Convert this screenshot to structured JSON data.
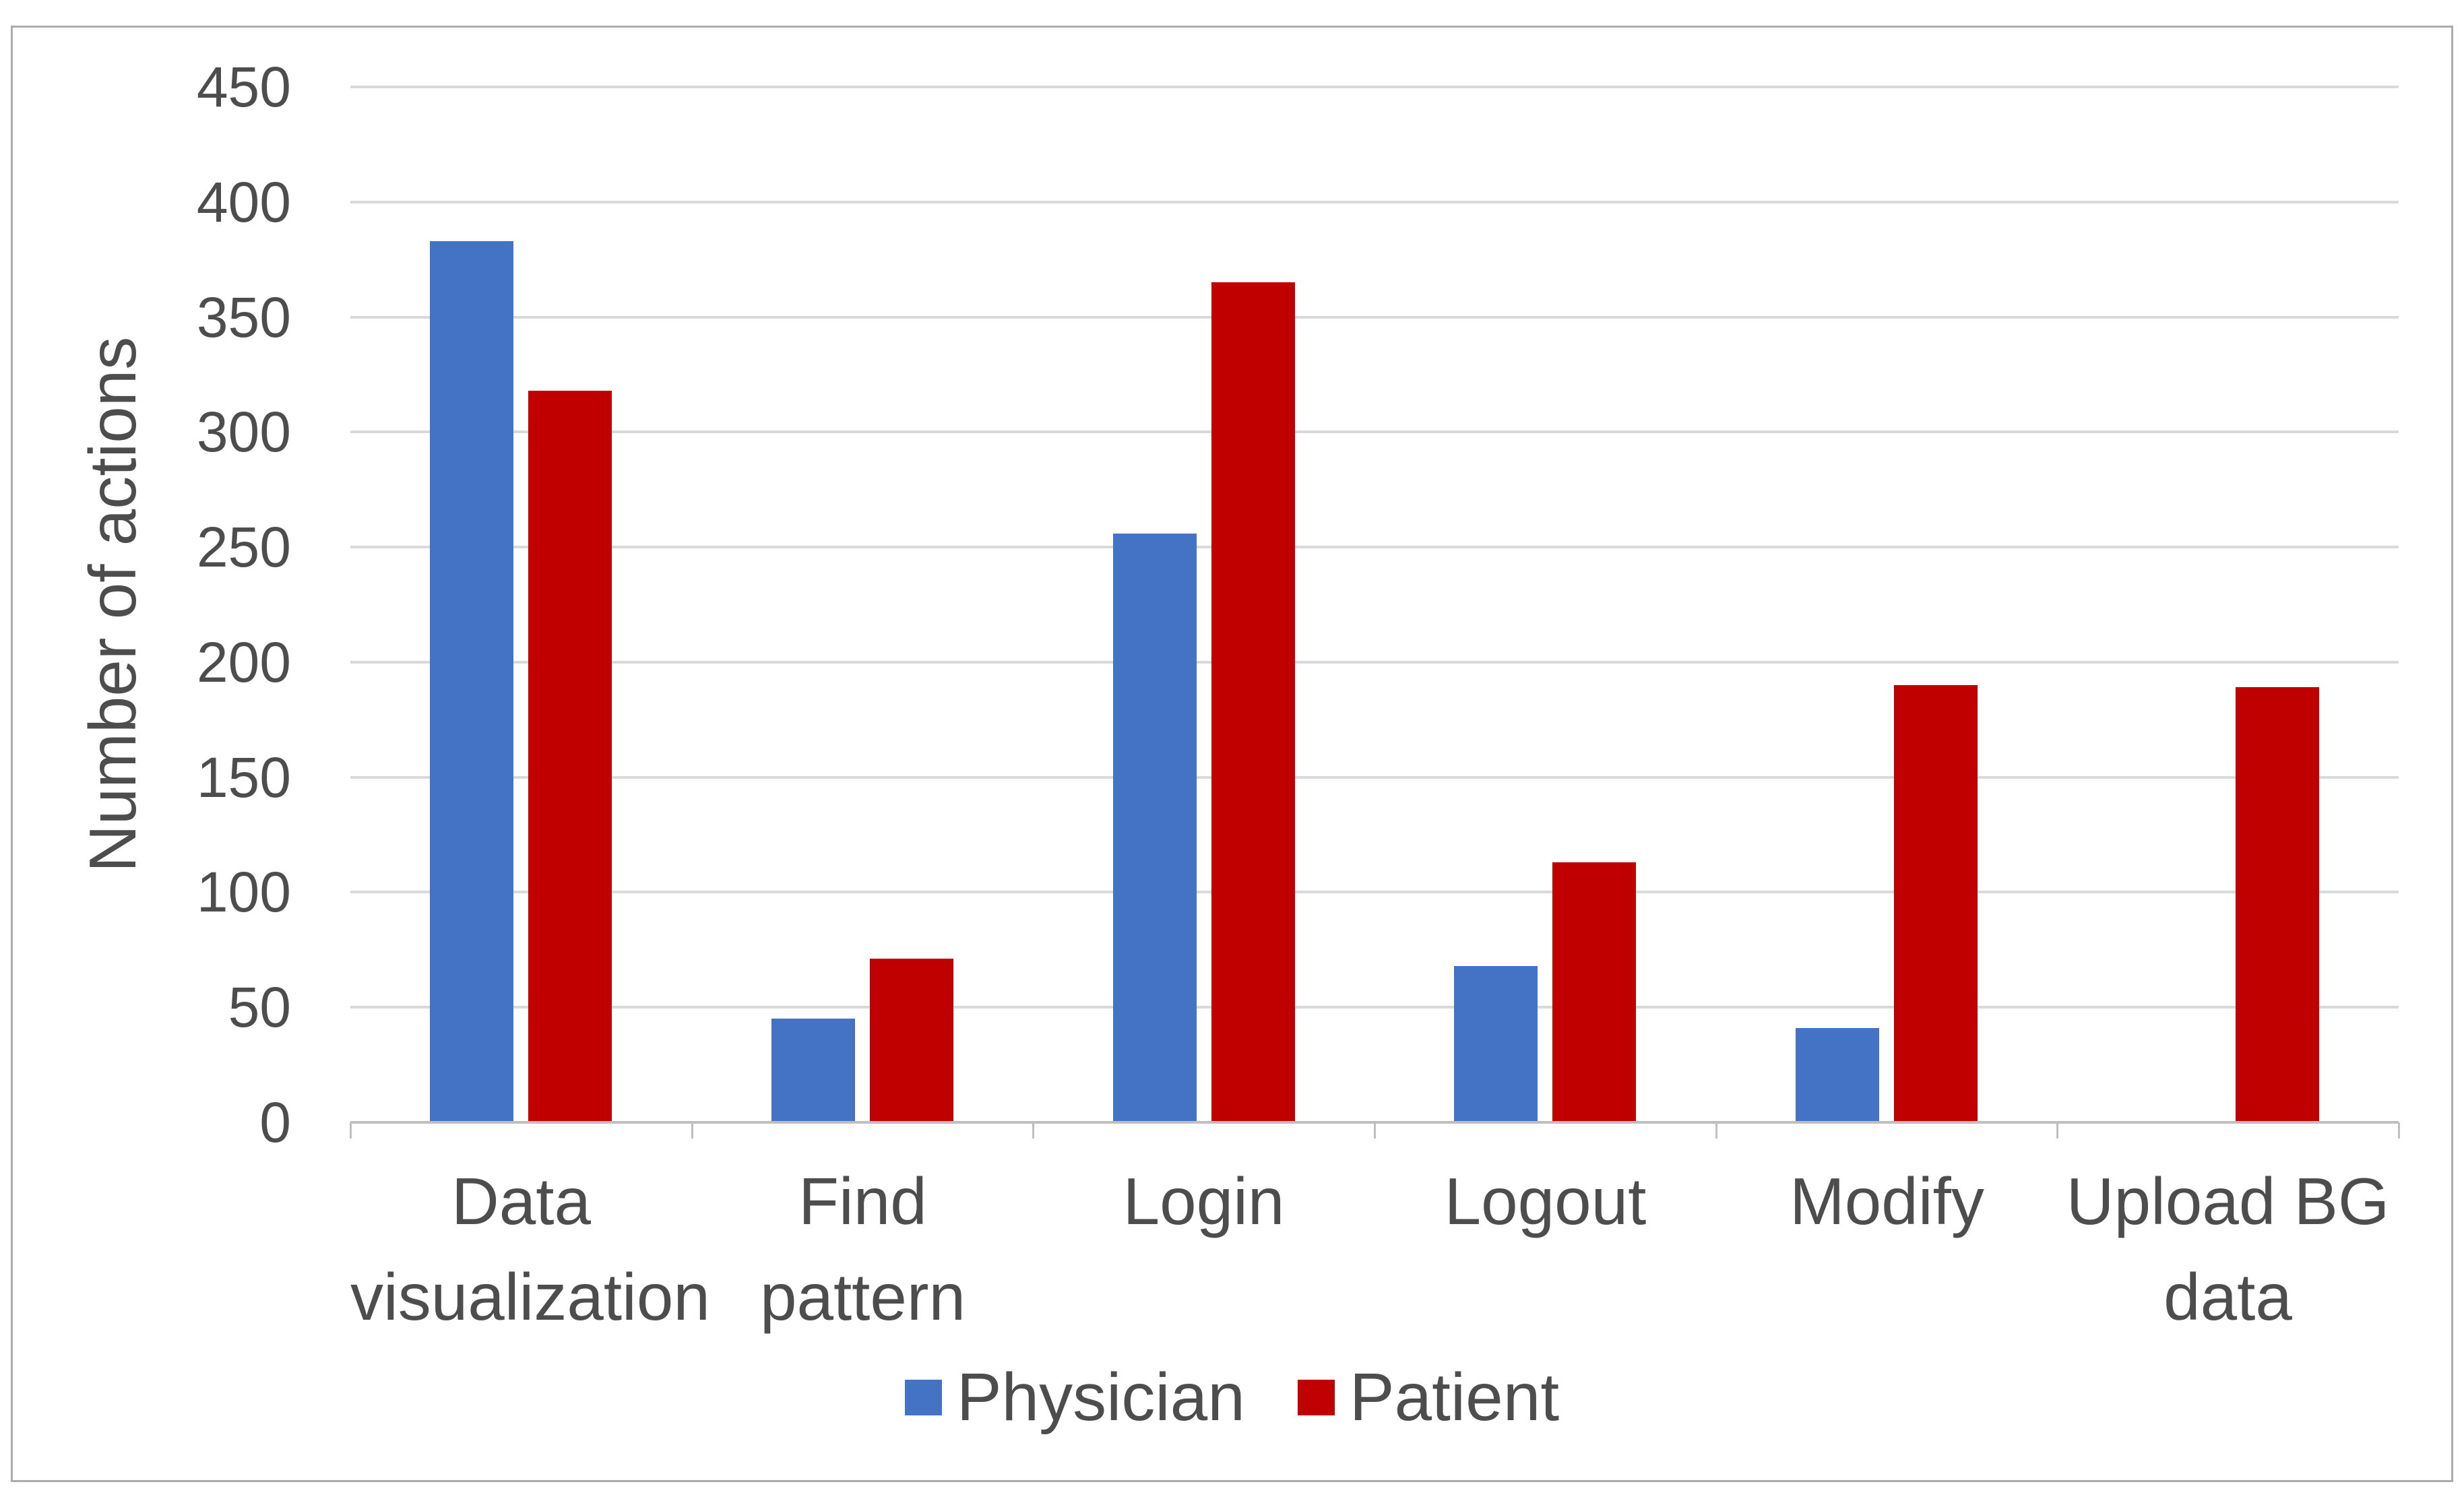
{
  "chart_data": {
    "type": "bar",
    "title": "",
    "categories": [
      "Data visualization",
      "Find pattern",
      "Login",
      "Logout",
      "Modify",
      "Upload BG data"
    ],
    "series": [
      {
        "name": "Physician",
        "color": "#4472C4",
        "values": [
          383,
          45,
          256,
          68,
          41,
          0
        ]
      },
      {
        "name": "Patient",
        "color": "#C00000",
        "values": [
          318,
          71,
          365,
          113,
          190,
          189
        ]
      }
    ],
    "xlabel": "",
    "ylabel": "Number of actions",
    "ylim": [
      0,
      450
    ],
    "yticks": [
      0,
      50,
      100,
      150,
      200,
      250,
      300,
      350,
      400,
      450
    ],
    "grid": true,
    "legend_position": "bottom"
  },
  "styles": {
    "physician_color": "#4472C4",
    "patient_color": "#C00000",
    "gridline_color": "#D9D9D9",
    "axis_line_color": "#BFBFBF",
    "text_color": "#4D4D4D",
    "frame_border_color": "#ABABAB",
    "background_color": "#FFFFFF"
  }
}
